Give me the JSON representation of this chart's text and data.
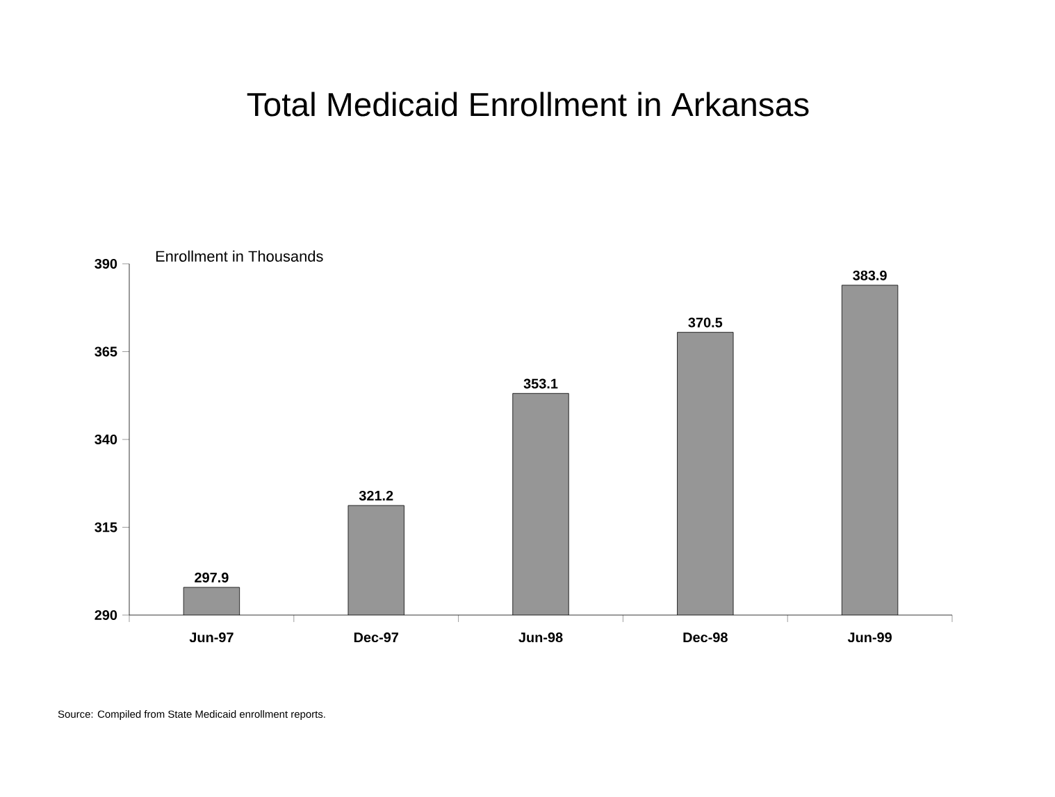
{
  "chart_data": {
    "type": "bar",
    "title": "Total Medicaid Enrollment in Arkansas",
    "ylabel": "Enrollment in Thousands",
    "categories": [
      "Jun-97",
      "Dec-97",
      "Jun-98",
      "Dec-98",
      "Jun-99"
    ],
    "values": [
      297.9,
      321.2,
      353.1,
      370.5,
      383.9
    ],
    "color": "#969696",
    "ylim": [
      290,
      390
    ],
    "yticks": [
      290,
      315,
      340,
      365,
      390
    ],
    "data_labels": true,
    "grid": false,
    "annotations": [
      "Source: Compiled from State Medicaid enrollment reports."
    ]
  }
}
